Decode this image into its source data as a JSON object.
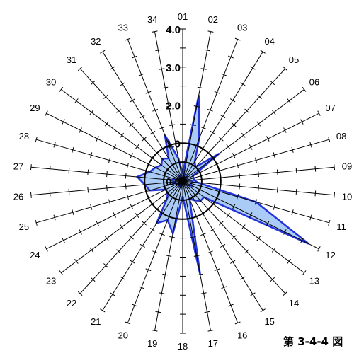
{
  "chart_data": {
    "type": "radar",
    "categories": [
      "01",
      "02",
      "03",
      "04",
      "05",
      "06",
      "07",
      "08",
      "09",
      "10",
      "11",
      "12",
      "13",
      "14",
      "15",
      "16",
      "17",
      "18",
      "19",
      "20",
      "21",
      "22",
      "23",
      "24",
      "25",
      "26",
      "27",
      "28",
      "29",
      "30",
      "31",
      "32",
      "33",
      "34"
    ],
    "r_ticks": [
      "0.0",
      "1.0",
      "2.0",
      "3.0",
      "4.0"
    ],
    "rlim": [
      0,
      4
    ],
    "series": [
      {
        "values": [
          0.2,
          2.3,
          1.2,
          0.6,
          0.5,
          1.2,
          0.3,
          0.3,
          0.3,
          0.4,
          2.0,
          3.7,
          0.7,
          0.7,
          0.6,
          0.5,
          2.5,
          0.4,
          1.4,
          1.1,
          1.3,
          0.6,
          0.5,
          0.5,
          0.9,
          1.0,
          1.2,
          0.9,
          0.8,
          0.7,
          0.8,
          0.7,
          1.3,
          0.6
        ]
      },
      {
        "values": [
          0.05,
          0.3,
          0.1,
          0.1,
          0.2,
          0.1,
          0.1,
          0.1,
          0.2,
          0.3,
          0.2,
          0.3,
          0.2,
          0.1,
          0.1,
          0.1,
          0.1,
          0.05,
          0.1,
          0.2,
          0.1,
          0.2,
          0.1,
          0.1,
          0.3,
          0.2,
          0.4,
          0.2,
          0.1,
          0.1,
          0.1,
          0.2,
          0.1,
          0.1
        ]
      }
    ],
    "colors": {
      "fill": "#a9cbf5",
      "line": "#2233dd",
      "grid": "#000000"
    },
    "grid": true
  },
  "caption": "第 3-4-4 図"
}
